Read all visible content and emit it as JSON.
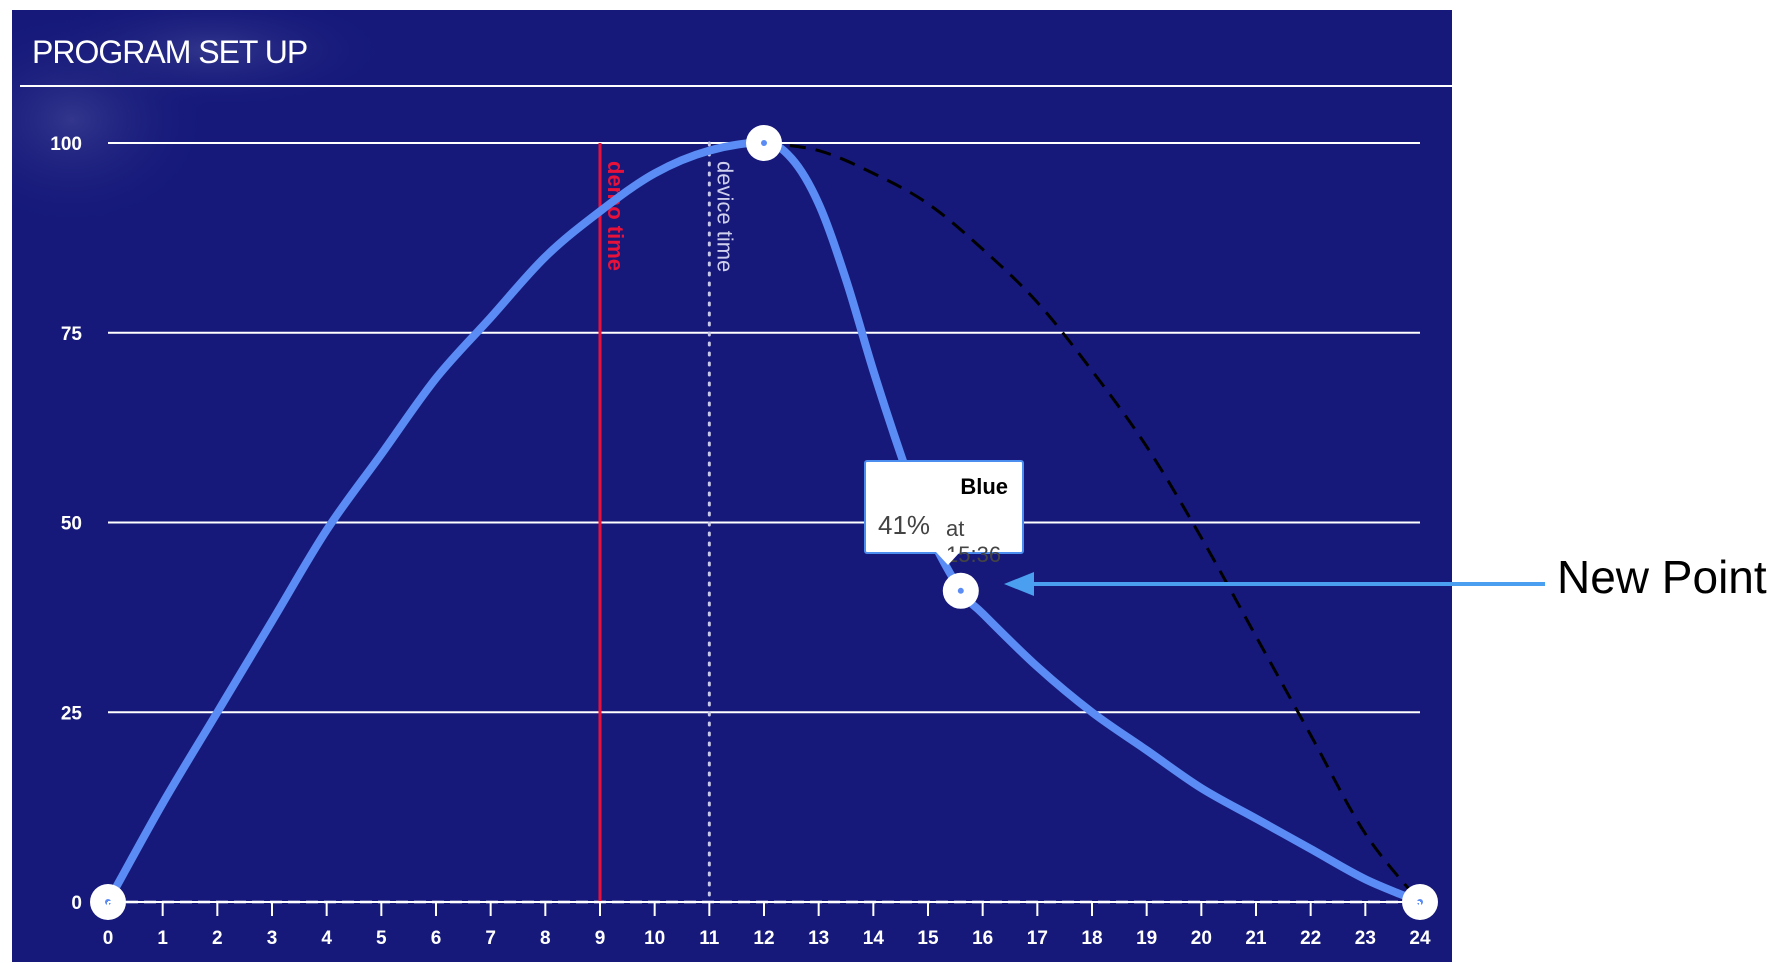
{
  "panel": {
    "title": "PROGRAM SET UP"
  },
  "colors": {
    "background": "#16197a",
    "curve": "#5b8cf5",
    "demo_line": "#e8113a",
    "device_line": "#c8c8e8",
    "grid": "#ffffff",
    "dashed": "#000000"
  },
  "chart_data": {
    "type": "line",
    "x_ticks": [
      "0",
      "1",
      "2",
      "3",
      "4",
      "5",
      "6",
      "7",
      "8",
      "9",
      "10",
      "11",
      "12",
      "13",
      "14",
      "15",
      "16",
      "17",
      "18",
      "19",
      "20",
      "21",
      "22",
      "23",
      "24"
    ],
    "y_ticks": [
      "0",
      "25",
      "50",
      "75",
      "100"
    ],
    "xlim": [
      0,
      24
    ],
    "ylim": [
      0,
      100
    ],
    "grid": true,
    "series": [
      {
        "name": "Blue",
        "control_points": [
          {
            "x": 0,
            "y": 0
          },
          {
            "x": 12,
            "y": 100
          },
          {
            "x": 15.6,
            "y": 41
          },
          {
            "x": 24,
            "y": 0
          }
        ],
        "curve": [
          {
            "x": 0,
            "y": 0
          },
          {
            "x": 1,
            "y": 13
          },
          {
            "x": 2,
            "y": 25
          },
          {
            "x": 3,
            "y": 37
          },
          {
            "x": 4,
            "y": 49
          },
          {
            "x": 5,
            "y": 59
          },
          {
            "x": 6,
            "y": 69
          },
          {
            "x": 7,
            "y": 77
          },
          {
            "x": 8,
            "y": 85
          },
          {
            "x": 9,
            "y": 91
          },
          {
            "x": 10,
            "y": 96
          },
          {
            "x": 11,
            "y": 99
          },
          {
            "x": 12,
            "y": 100
          },
          {
            "x": 12.5,
            "y": 98
          },
          {
            "x": 13,
            "y": 92
          },
          {
            "x": 13.5,
            "y": 82
          },
          {
            "x": 14,
            "y": 70
          },
          {
            "x": 14.5,
            "y": 59
          },
          {
            "x": 15,
            "y": 49
          },
          {
            "x": 15.6,
            "y": 41
          },
          {
            "x": 16,
            "y": 38
          },
          {
            "x": 17,
            "y": 31
          },
          {
            "x": 18,
            "y": 25
          },
          {
            "x": 19,
            "y": 20
          },
          {
            "x": 20,
            "y": 15
          },
          {
            "x": 21,
            "y": 11
          },
          {
            "x": 22,
            "y": 7
          },
          {
            "x": 23,
            "y": 3
          },
          {
            "x": 24,
            "y": 0
          }
        ]
      }
    ],
    "previous_curve": [
      {
        "x": 12,
        "y": 100
      },
      {
        "x": 13,
        "y": 99
      },
      {
        "x": 14,
        "y": 96
      },
      {
        "x": 15,
        "y": 92
      },
      {
        "x": 16,
        "y": 86
      },
      {
        "x": 17,
        "y": 79
      },
      {
        "x": 18,
        "y": 70
      },
      {
        "x": 19,
        "y": 60
      },
      {
        "x": 20,
        "y": 48
      },
      {
        "x": 21,
        "y": 35
      },
      {
        "x": 22,
        "y": 22
      },
      {
        "x": 23,
        "y": 9
      },
      {
        "x": 24,
        "y": 0
      }
    ],
    "markers": [
      {
        "label": "demo time",
        "x": 9
      },
      {
        "label": "device time",
        "x": 11
      }
    ],
    "tooltip": {
      "series": "Blue",
      "value": "41%",
      "time_text": "at 15:36"
    }
  },
  "annotation": {
    "label": "New Point"
  }
}
